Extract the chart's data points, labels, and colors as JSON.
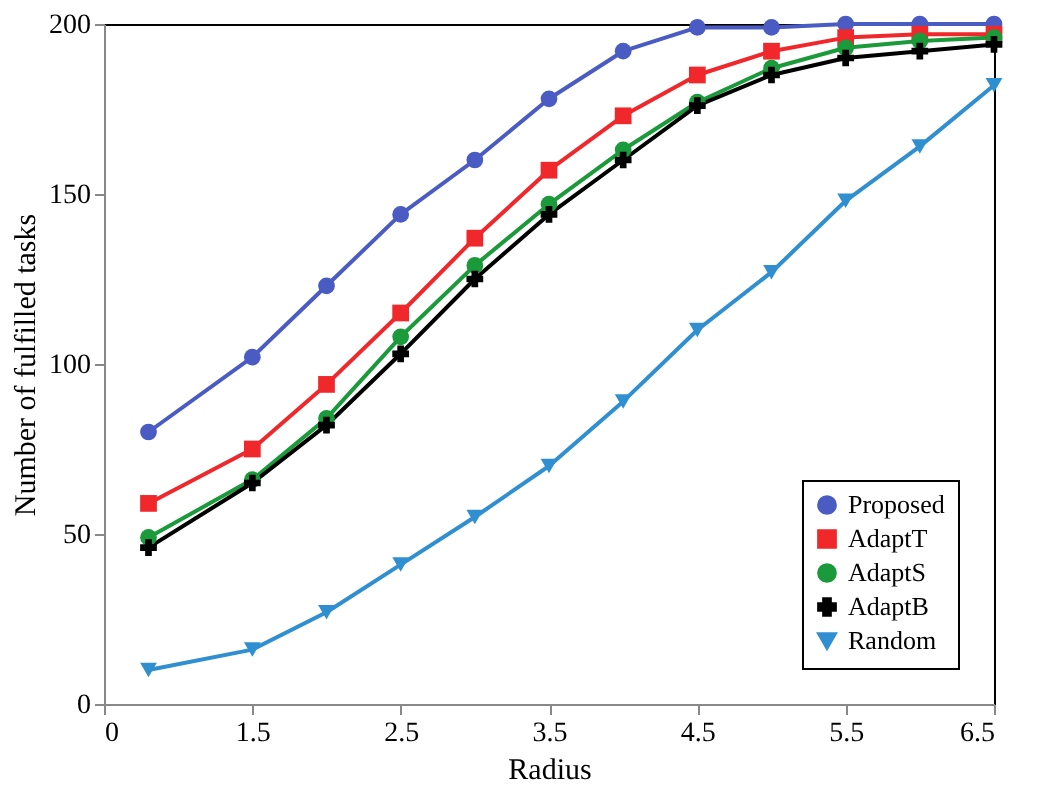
{
  "chart_data": {
    "type": "line",
    "xlabel": "Radius",
    "ylabel": "Number of fulfilled tasks",
    "x": [
      0.8,
      1.5,
      2.0,
      2.5,
      3.0,
      3.5,
      4.0,
      4.5,
      5.0,
      5.5,
      6.0,
      6.5
    ],
    "xlim": [
      0.5,
      6.5
    ],
    "xticks": [
      {
        "value": 0.5,
        "label": "0"
      },
      1.5,
      2.5,
      3.5,
      4.5,
      5.5,
      6.5
    ],
    "ylim": [
      0,
      200
    ],
    "yticks": [
      0,
      50,
      100,
      150,
      200
    ],
    "grid": false,
    "legend": "bottom right",
    "series": [
      {
        "name": "Proposed",
        "color": "#4a5bc4",
        "marker": "circle",
        "values": [
          80,
          102,
          123,
          144,
          160,
          178,
          192,
          199,
          199,
          200,
          200,
          200
        ]
      },
      {
        "name": "AdaptT",
        "color": "#f0272b",
        "marker": "square",
        "values": [
          59,
          75,
          94,
          115,
          137,
          157,
          173,
          185,
          192,
          196,
          197,
          197
        ]
      },
      {
        "name": "AdaptS",
        "color": "#1a9a3a",
        "marker": "circle",
        "values": [
          49,
          66,
          84,
          108,
          129,
          147,
          163,
          177,
          187,
          193,
          195,
          196
        ]
      },
      {
        "name": "AdaptB",
        "color": "#000000",
        "marker": "cross",
        "values": [
          46,
          65,
          82,
          103,
          125,
          144,
          160,
          176,
          185,
          190,
          192,
          194
        ]
      },
      {
        "name": "Random",
        "color": "#2f8fd0",
        "marker": "triangle",
        "values": [
          10,
          16,
          27,
          41,
          55,
          70,
          89,
          110,
          127,
          148,
          164,
          182
        ]
      }
    ]
  }
}
